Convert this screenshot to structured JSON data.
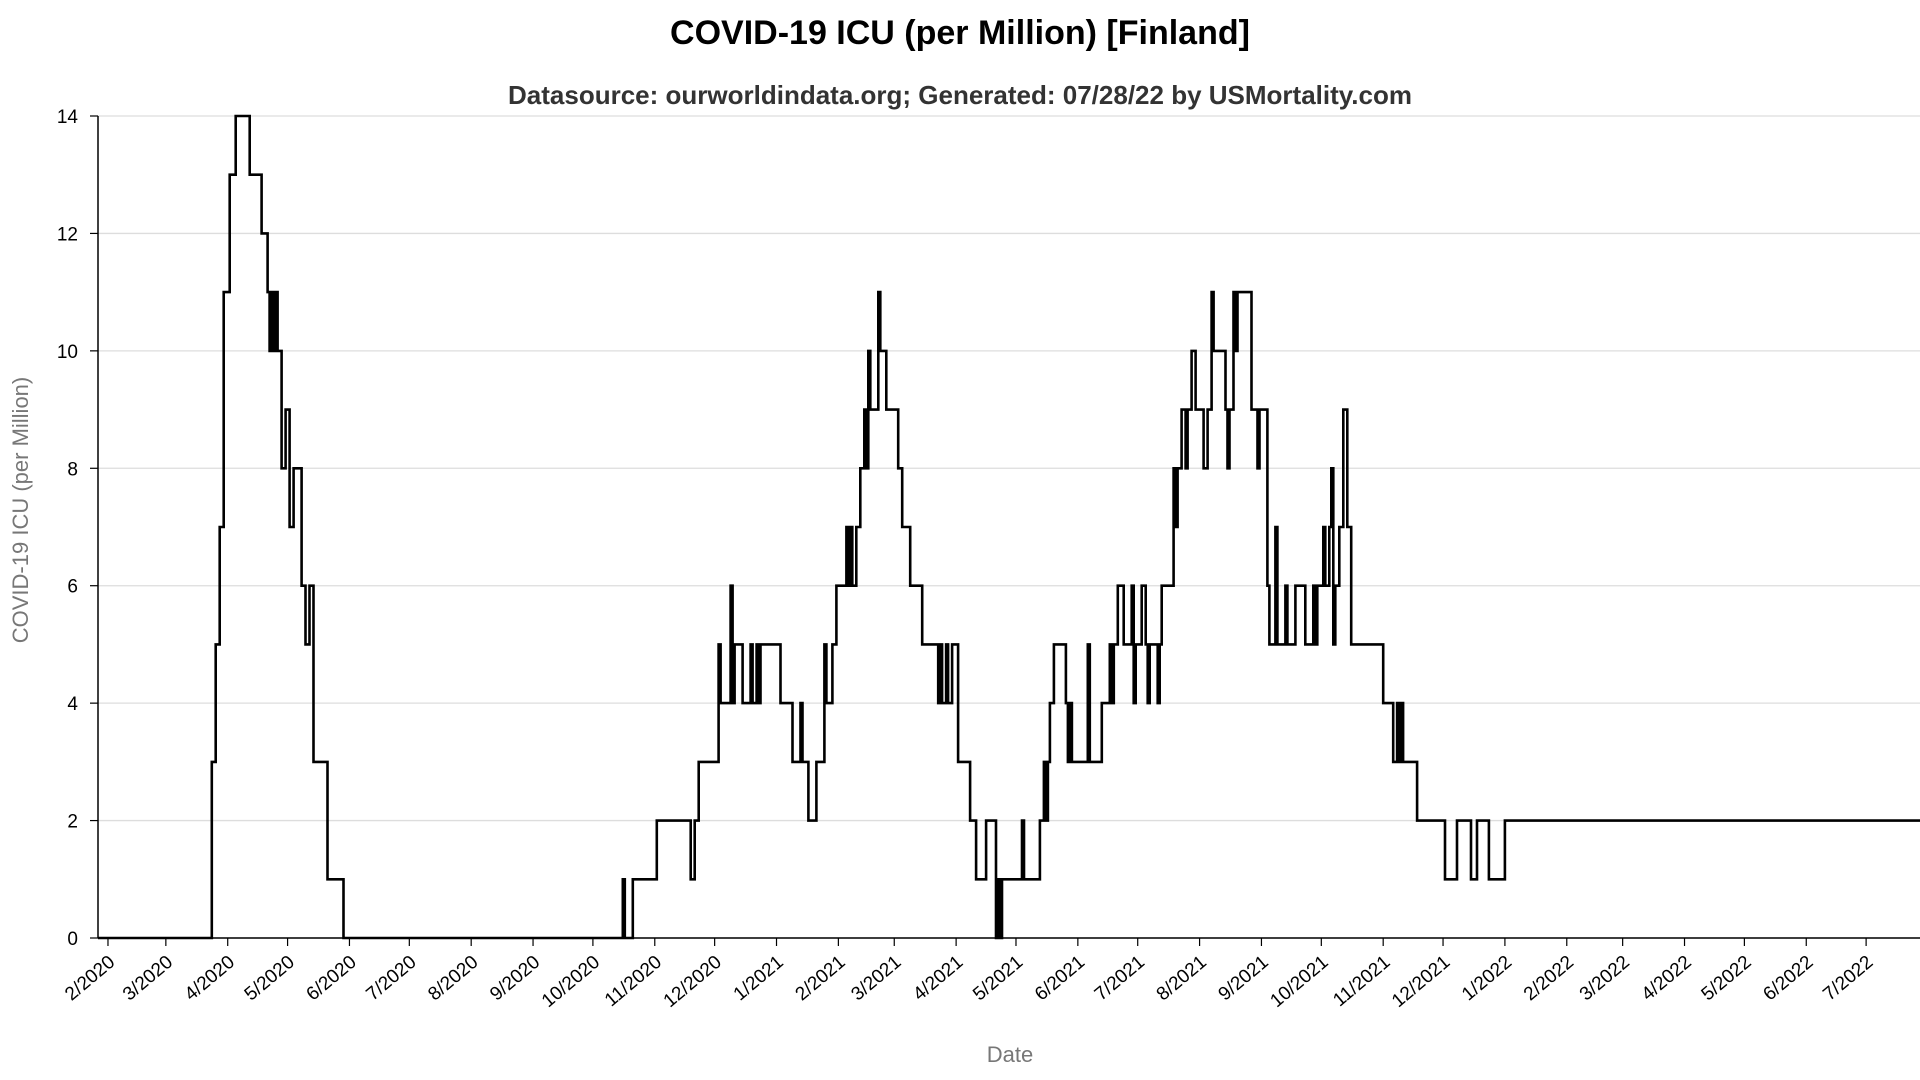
{
  "chart_data": {
    "type": "line",
    "title": "COVID-19 ICU (per Million) [Finland]",
    "subtitle": "Datasource: ourworldindata.org; Generated: 07/28/22 by USMortality.com",
    "xlabel": "Date",
    "ylabel": "COVID-19 ICU (per Million)",
    "xlim": [
      "2020-01-27",
      "2022-07-28"
    ],
    "ylim": [
      0,
      14
    ],
    "yticks": [
      0,
      2,
      4,
      6,
      8,
      10,
      12,
      14
    ],
    "xticks": [
      {
        "date": "2020-02-01",
        "label": "2/2020"
      },
      {
        "date": "2020-03-01",
        "label": "3/2020"
      },
      {
        "date": "2020-04-01",
        "label": "4/2020"
      },
      {
        "date": "2020-05-01",
        "label": "5/2020"
      },
      {
        "date": "2020-06-01",
        "label": "6/2020"
      },
      {
        "date": "2020-07-01",
        "label": "7/2020"
      },
      {
        "date": "2020-08-01",
        "label": "8/2020"
      },
      {
        "date": "2020-09-01",
        "label": "9/2020"
      },
      {
        "date": "2020-10-01",
        "label": "10/2020"
      },
      {
        "date": "2020-11-01",
        "label": "11/2020"
      },
      {
        "date": "2020-12-01",
        "label": "12/2020"
      },
      {
        "date": "2021-01-01",
        "label": "1/2021"
      },
      {
        "date": "2021-02-01",
        "label": "2/2021"
      },
      {
        "date": "2021-03-01",
        "label": "3/2021"
      },
      {
        "date": "2021-04-01",
        "label": "4/2021"
      },
      {
        "date": "2021-05-01",
        "label": "5/2021"
      },
      {
        "date": "2021-06-01",
        "label": "6/2021"
      },
      {
        "date": "2021-07-01",
        "label": "7/2021"
      },
      {
        "date": "2021-08-01",
        "label": "8/2021"
      },
      {
        "date": "2021-09-01",
        "label": "9/2021"
      },
      {
        "date": "2021-10-01",
        "label": "10/2021"
      },
      {
        "date": "2021-11-01",
        "label": "11/2021"
      },
      {
        "date": "2021-12-01",
        "label": "12/2021"
      },
      {
        "date": "2022-01-01",
        "label": "1/2022"
      },
      {
        "date": "2022-02-01",
        "label": "2/2022"
      },
      {
        "date": "2022-03-01",
        "label": "3/2022"
      },
      {
        "date": "2022-04-01",
        "label": "4/2022"
      },
      {
        "date": "2022-05-01",
        "label": "5/2022"
      },
      {
        "date": "2022-06-01",
        "label": "6/2022"
      },
      {
        "date": "2022-07-01",
        "label": "7/2022"
      }
    ],
    "grid": true,
    "line_color": "#000000",
    "grid_color": "#dddddd",
    "series": [
      {
        "points": [
          [
            "2020-01-27",
            0
          ],
          [
            "2020-03-22",
            0
          ],
          [
            "2020-03-24",
            3
          ],
          [
            "2020-03-26",
            5
          ],
          [
            "2020-03-28",
            7
          ],
          [
            "2020-03-30",
            11
          ],
          [
            "2020-04-02",
            13
          ],
          [
            "2020-04-05",
            14
          ],
          [
            "2020-04-10",
            14
          ],
          [
            "2020-04-12",
            13
          ],
          [
            "2020-04-16",
            13
          ],
          [
            "2020-04-18",
            12
          ],
          [
            "2020-04-21",
            11
          ],
          [
            "2020-04-22",
            10
          ],
          [
            "2020-04-23",
            11
          ],
          [
            "2020-04-24",
            10
          ],
          [
            "2020-04-25",
            11
          ],
          [
            "2020-04-26",
            10
          ],
          [
            "2020-04-28",
            8
          ],
          [
            "2020-04-30",
            9
          ],
          [
            "2020-05-02",
            7
          ],
          [
            "2020-05-04",
            8
          ],
          [
            "2020-05-06",
            8
          ],
          [
            "2020-05-08",
            6
          ],
          [
            "2020-05-10",
            5
          ],
          [
            "2020-05-12",
            6
          ],
          [
            "2020-05-14",
            3
          ],
          [
            "2020-05-19",
            3
          ],
          [
            "2020-05-21",
            1
          ],
          [
            "2020-05-27",
            1
          ],
          [
            "2020-05-28",
            1
          ],
          [
            "2020-05-29",
            0
          ],
          [
            "2020-10-15",
            0
          ],
          [
            "2020-10-16",
            1
          ],
          [
            "2020-10-17",
            0
          ],
          [
            "2020-10-20",
            0
          ],
          [
            "2020-10-21",
            1
          ],
          [
            "2020-11-01",
            1
          ],
          [
            "2020-11-02",
            2
          ],
          [
            "2020-11-18",
            2
          ],
          [
            "2020-11-19",
            1
          ],
          [
            "2020-11-21",
            2
          ],
          [
            "2020-11-23",
            3
          ],
          [
            "2020-12-01",
            3
          ],
          [
            "2020-12-03",
            5
          ],
          [
            "2020-12-04",
            4
          ],
          [
            "2020-12-08",
            4
          ],
          [
            "2020-12-09",
            6
          ],
          [
            "2020-12-10",
            4
          ],
          [
            "2020-12-11",
            5
          ],
          [
            "2020-12-14",
            5
          ],
          [
            "2020-12-15",
            4
          ],
          [
            "2020-12-18",
            4
          ],
          [
            "2020-12-19",
            5
          ],
          [
            "2020-12-20",
            4
          ],
          [
            "2020-12-22",
            5
          ],
          [
            "2020-12-23",
            4
          ],
          [
            "2020-12-24",
            5
          ],
          [
            "2021-01-02",
            5
          ],
          [
            "2021-01-03",
            4
          ],
          [
            "2021-01-08",
            4
          ],
          [
            "2021-01-09",
            3
          ],
          [
            "2021-01-12",
            3
          ],
          [
            "2021-01-13",
            4
          ],
          [
            "2021-01-14",
            3
          ],
          [
            "2021-01-16",
            3
          ],
          [
            "2021-01-17",
            2
          ],
          [
            "2021-01-20",
            2
          ],
          [
            "2021-01-21",
            3
          ],
          [
            "2021-01-24",
            3
          ],
          [
            "2021-01-25",
            5
          ],
          [
            "2021-01-26",
            4
          ],
          [
            "2021-01-28",
            4
          ],
          [
            "2021-01-29",
            5
          ],
          [
            "2021-01-31",
            6
          ],
          [
            "2021-02-04",
            6
          ],
          [
            "2021-02-05",
            7
          ],
          [
            "2021-02-06",
            6
          ],
          [
            "2021-02-07",
            7
          ],
          [
            "2021-02-08",
            6
          ],
          [
            "2021-02-10",
            7
          ],
          [
            "2021-02-12",
            8
          ],
          [
            "2021-02-14",
            9
          ],
          [
            "2021-02-15",
            8
          ],
          [
            "2021-02-16",
            10
          ],
          [
            "2021-02-17",
            9
          ],
          [
            "2021-02-20",
            9
          ],
          [
            "2021-02-21",
            11
          ],
          [
            "2021-02-22",
            10
          ],
          [
            "2021-02-25",
            9
          ],
          [
            "2021-03-02",
            9
          ],
          [
            "2021-03-03",
            8
          ],
          [
            "2021-03-05",
            7
          ],
          [
            "2021-03-08",
            7
          ],
          [
            "2021-03-09",
            6
          ],
          [
            "2021-03-14",
            6
          ],
          [
            "2021-03-15",
            5
          ],
          [
            "2021-03-22",
            5
          ],
          [
            "2021-03-23",
            4
          ],
          [
            "2021-03-24",
            5
          ],
          [
            "2021-03-25",
            4
          ],
          [
            "2021-03-27",
            5
          ],
          [
            "2021-03-28",
            4
          ],
          [
            "2021-03-30",
            5
          ],
          [
            "2021-04-01",
            5
          ],
          [
            "2021-04-02",
            3
          ],
          [
            "2021-04-07",
            3
          ],
          [
            "2021-04-08",
            2
          ],
          [
            "2021-04-10",
            2
          ],
          [
            "2021-04-11",
            1
          ],
          [
            "2021-04-15",
            1
          ],
          [
            "2021-04-16",
            2
          ],
          [
            "2021-04-19",
            2
          ],
          [
            "2021-04-21",
            0
          ],
          [
            "2021-04-22",
            1
          ],
          [
            "2021-04-23",
            0
          ],
          [
            "2021-04-24",
            1
          ],
          [
            "2021-05-03",
            1
          ],
          [
            "2021-05-04",
            2
          ],
          [
            "2021-05-05",
            1
          ],
          [
            "2021-05-12",
            1
          ],
          [
            "2021-05-13",
            2
          ],
          [
            "2021-05-15",
            3
          ],
          [
            "2021-05-16",
            2
          ],
          [
            "2021-05-17",
            3
          ],
          [
            "2021-05-18",
            4
          ],
          [
            "2021-05-20",
            5
          ],
          [
            "2021-05-24",
            5
          ],
          [
            "2021-05-26",
            4
          ],
          [
            "2021-05-27",
            3
          ],
          [
            "2021-05-28",
            4
          ],
          [
            "2021-05-29",
            3
          ],
          [
            "2021-06-05",
            3
          ],
          [
            "2021-06-06",
            5
          ],
          [
            "2021-06-07",
            3
          ],
          [
            "2021-06-12",
            3
          ],
          [
            "2021-06-13",
            4
          ],
          [
            "2021-06-16",
            4
          ],
          [
            "2021-06-17",
            5
          ],
          [
            "2021-06-18",
            4
          ],
          [
            "2021-06-19",
            5
          ],
          [
            "2021-06-21",
            6
          ],
          [
            "2021-06-24",
            5
          ],
          [
            "2021-06-27",
            5
          ],
          [
            "2021-06-28",
            6
          ],
          [
            "2021-06-29",
            4
          ],
          [
            "2021-06-30",
            5
          ],
          [
            "2021-07-02",
            5
          ],
          [
            "2021-07-03",
            6
          ],
          [
            "2021-07-05",
            5
          ],
          [
            "2021-07-06",
            4
          ],
          [
            "2021-07-07",
            5
          ],
          [
            "2021-07-10",
            5
          ],
          [
            "2021-07-11",
            4
          ],
          [
            "2021-07-12",
            5
          ],
          [
            "2021-07-13",
            6
          ],
          [
            "2021-07-18",
            6
          ],
          [
            "2021-07-19",
            8
          ],
          [
            "2021-07-20",
            7
          ],
          [
            "2021-07-21",
            8
          ],
          [
            "2021-07-23",
            9
          ],
          [
            "2021-07-25",
            8
          ],
          [
            "2021-07-26",
            9
          ],
          [
            "2021-07-28",
            10
          ],
          [
            "2021-07-30",
            9
          ],
          [
            "2021-08-02",
            9
          ],
          [
            "2021-08-03",
            8
          ],
          [
            "2021-08-05",
            9
          ],
          [
            "2021-08-07",
            11
          ],
          [
            "2021-08-08",
            10
          ],
          [
            "2021-08-13",
            10
          ],
          [
            "2021-08-14",
            9
          ],
          [
            "2021-08-15",
            8
          ],
          [
            "2021-08-16",
            9
          ],
          [
            "2021-08-18",
            11
          ],
          [
            "2021-08-19",
            10
          ],
          [
            "2021-08-20",
            11
          ],
          [
            "2021-08-26",
            11
          ],
          [
            "2021-08-27",
            9
          ],
          [
            "2021-08-30",
            8
          ],
          [
            "2021-08-31",
            9
          ],
          [
            "2021-09-02",
            9
          ],
          [
            "2021-09-04",
            6
          ],
          [
            "2021-09-05",
            5
          ],
          [
            "2021-09-07",
            5
          ],
          [
            "2021-09-08",
            7
          ],
          [
            "2021-09-09",
            5
          ],
          [
            "2021-09-12",
            5
          ],
          [
            "2021-09-13",
            6
          ],
          [
            "2021-09-14",
            5
          ],
          [
            "2021-09-17",
            5
          ],
          [
            "2021-09-18",
            6
          ],
          [
            "2021-09-22",
            6
          ],
          [
            "2021-09-23",
            5
          ],
          [
            "2021-09-26",
            5
          ],
          [
            "2021-09-27",
            6
          ],
          [
            "2021-09-28",
            5
          ],
          [
            "2021-09-29",
            6
          ],
          [
            "2021-09-30",
            6
          ],
          [
            "2021-10-02",
            7
          ],
          [
            "2021-10-03",
            6
          ],
          [
            "2021-10-05",
            7
          ],
          [
            "2021-10-06",
            8
          ],
          [
            "2021-10-07",
            5
          ],
          [
            "2021-10-08",
            6
          ],
          [
            "2021-10-10",
            7
          ],
          [
            "2021-10-12",
            9
          ],
          [
            "2021-10-14",
            7
          ],
          [
            "2021-10-16",
            5
          ],
          [
            "2021-10-31",
            5
          ],
          [
            "2021-11-01",
            4
          ],
          [
            "2021-11-05",
            4
          ],
          [
            "2021-11-06",
            3
          ],
          [
            "2021-11-08",
            4
          ],
          [
            "2021-11-09",
            3
          ],
          [
            "2021-11-10",
            4
          ],
          [
            "2021-11-11",
            3
          ],
          [
            "2021-11-17",
            3
          ],
          [
            "2021-11-18",
            2
          ],
          [
            "2021-12-01",
            2
          ],
          [
            "2021-12-02",
            1
          ],
          [
            "2021-12-07",
            1
          ],
          [
            "2021-12-08",
            2
          ],
          [
            "2021-12-14",
            2
          ],
          [
            "2021-12-15",
            1
          ],
          [
            "2021-12-17",
            1
          ],
          [
            "2021-12-18",
            2
          ],
          [
            "2021-12-23",
            2
          ],
          [
            "2021-12-24",
            1
          ],
          [
            "2021-12-31",
            1
          ],
          [
            "2022-01-01",
            2
          ],
          [
            "2022-07-28",
            2
          ]
        ]
      }
    ]
  }
}
